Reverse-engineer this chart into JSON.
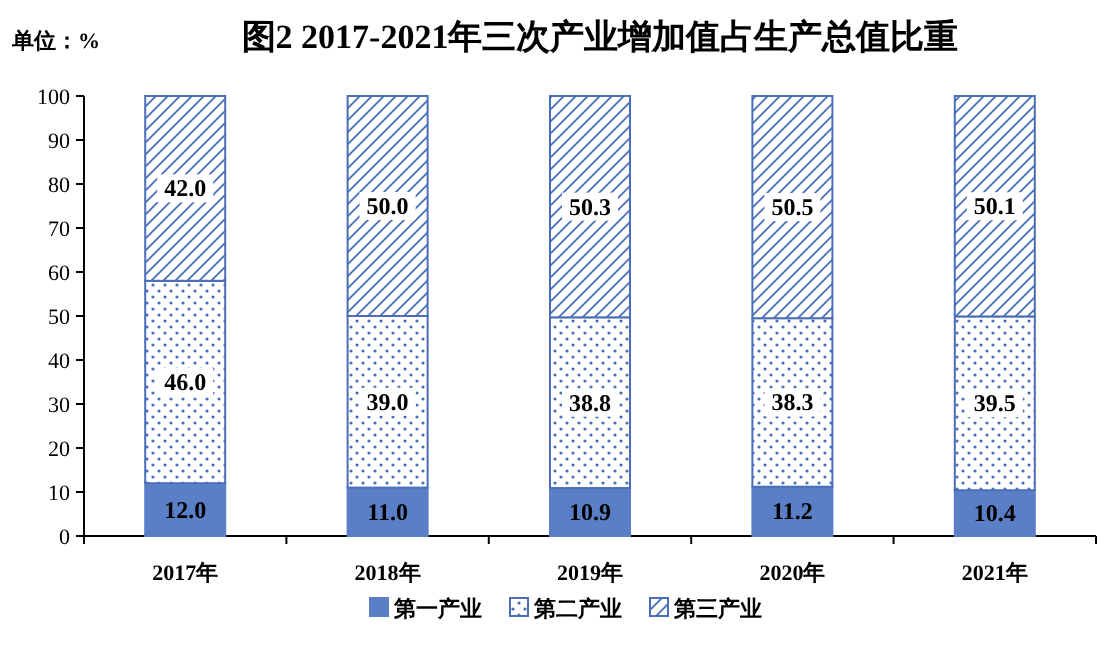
{
  "chart_data": {
    "type": "bar",
    "title": "图2 2017-2021年三次产业增加值占生产总值比重",
    "ylabel": "单位：%",
    "stacked": true,
    "categories": [
      "2017年",
      "2018年",
      "2019年",
      "2020年",
      "2021年"
    ],
    "series": [
      {
        "name": "第一产业",
        "color": "#5b7fc7",
        "values": [
          12.0,
          11.0,
          10.9,
          11.2,
          10.4
        ],
        "value_labels": [
          "12.0",
          "11.0",
          "10.9",
          "11.2",
          "10.4"
        ]
      },
      {
        "name": "第二产业",
        "color": "#4a6fb8",
        "values": [
          46.0,
          39.0,
          38.8,
          38.3,
          39.5
        ],
        "value_labels": [
          "46.0",
          "39.0",
          "38.8",
          "38.3",
          "39.5"
        ]
      },
      {
        "name": "第三产业",
        "color": "#4a6fb8",
        "values": [
          42.0,
          50.0,
          50.3,
          50.5,
          50.1
        ],
        "value_labels": [
          "42.0",
          "50.0",
          "50.3",
          "50.5",
          "50.1"
        ]
      }
    ],
    "ylim": [
      0,
      100
    ],
    "yticks": [
      0,
      10,
      20,
      30,
      40,
      50,
      60,
      70,
      80,
      90,
      100
    ],
    "grid": false,
    "legend": "bottom"
  }
}
